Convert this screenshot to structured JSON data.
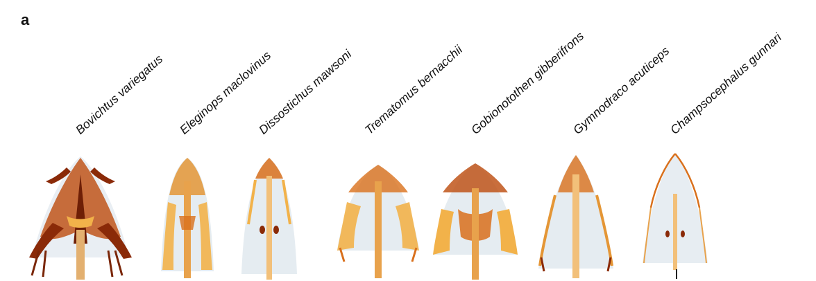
{
  "panel_label": "a",
  "species": [
    {
      "name": "Bovichtus variegatus"
    },
    {
      "name": "Eleginops maclovinus"
    },
    {
      "name": "Dissostichus mawsoni"
    },
    {
      "name": "Trematomus bernacchii"
    },
    {
      "name": "Gobionotothen gibberifrons"
    },
    {
      "name": "Gymnodraco acuticeps"
    },
    {
      "name": "Champsocephalus gunnari"
    }
  ],
  "colors": {
    "bone_dark": "#8a2a08",
    "bone_mid": "#d9701c",
    "bone_light": "#f2b24a",
    "tissue": "#dfe7ee"
  }
}
